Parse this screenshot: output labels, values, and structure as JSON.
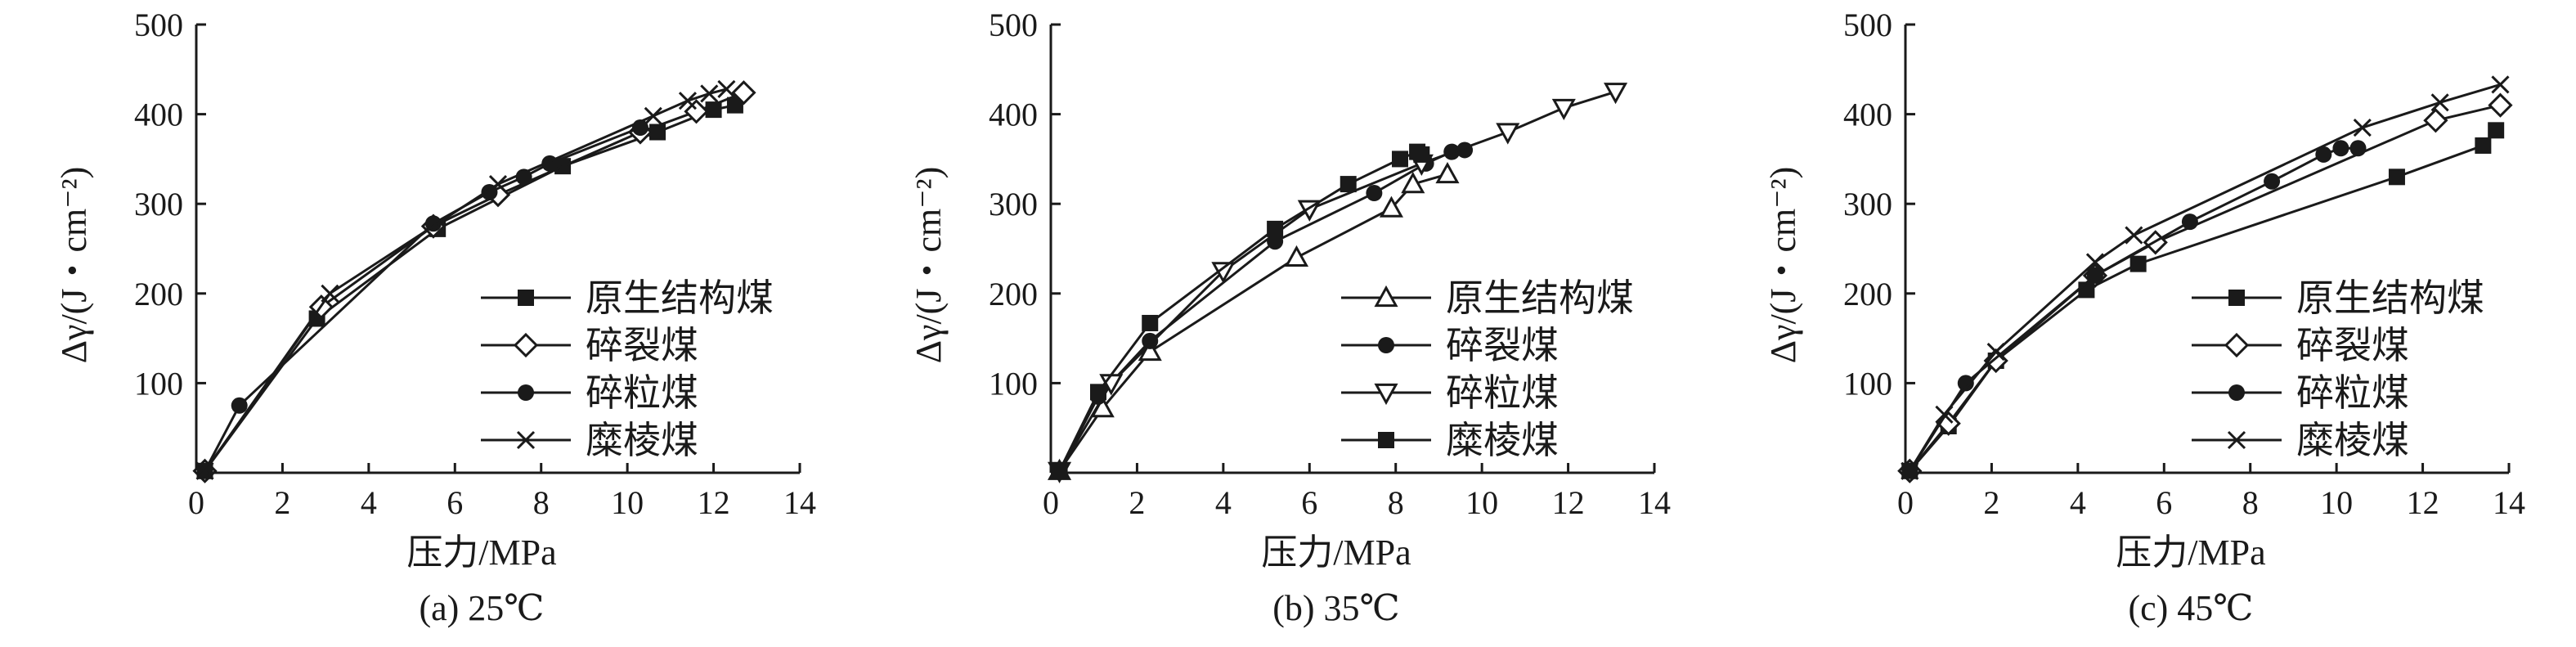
{
  "chart_data": [
    {
      "type": "line",
      "caption": "(a) 25℃",
      "xlabel": "压力/MPa",
      "ylabel": "Δγ/(J・cm⁻²)",
      "xlim": [
        0,
        14
      ],
      "ylim": [
        0,
        500
      ],
      "xticks": [
        0,
        2,
        4,
        6,
        8,
        10,
        12,
        14
      ],
      "yticks": [
        100,
        200,
        300,
        400,
        500
      ],
      "grid": false,
      "legend_position": "bottom-right",
      "series": [
        {
          "name": "原生结构煤",
          "marker": "square-filled",
          "x": [
            0.2,
            2.8,
            5.6,
            8.5,
            10.7,
            12.0,
            12.5
          ],
          "y": [
            2,
            172,
            272,
            342,
            380,
            405,
            410
          ]
        },
        {
          "name": "碎裂煤",
          "marker": "diamond-open",
          "x": [
            0.2,
            2.9,
            5.5,
            7.0,
            10.3,
            11.6,
            12.7
          ],
          "y": [
            2,
            185,
            275,
            310,
            380,
            403,
            424
          ]
        },
        {
          "name": "碎粒煤",
          "marker": "circle-filled",
          "x": [
            0.2,
            1.0,
            5.5,
            6.8,
            7.6,
            8.2,
            10.3
          ],
          "y": [
            2,
            75,
            278,
            313,
            330,
            345,
            385
          ]
        },
        {
          "name": "糜棱煤",
          "marker": "x",
          "x": [
            0.2,
            3.1,
            7.0,
            10.6,
            11.4,
            11.9,
            12.3
          ],
          "y": [
            2,
            200,
            322,
            398,
            415,
            423,
            428
          ]
        }
      ]
    },
    {
      "type": "line",
      "caption": "(b) 35℃",
      "xlabel": "压力/MPa",
      "ylabel": "Δγ/(J・cm⁻²)",
      "xlim": [
        0,
        14
      ],
      "ylim": [
        0,
        500
      ],
      "xticks": [
        0,
        2,
        4,
        6,
        8,
        10,
        12,
        14
      ],
      "yticks": [
        100,
        200,
        300,
        400,
        500
      ],
      "grid": false,
      "legend_position": "bottom-right",
      "series": [
        {
          "name": "原生结构煤",
          "marker": "triangle-up-open",
          "x": [
            0.2,
            1.2,
            2.3,
            5.7,
            7.9,
            8.4,
            9.2
          ],
          "y": [
            2,
            72,
            135,
            240,
            295,
            322,
            333
          ]
        },
        {
          "name": "碎裂煤",
          "marker": "circle-filled",
          "x": [
            0.2,
            1.1,
            2.3,
            5.2,
            7.5,
            8.7,
            9.3,
            9.6
          ],
          "y": [
            2,
            85,
            147,
            258,
            312,
            345,
            358,
            360
          ]
        },
        {
          "name": "碎粒煤",
          "marker": "triangle-down-open",
          "x": [
            0.2,
            1.4,
            4.0,
            6.0,
            8.6,
            10.6,
            11.9,
            13.1
          ],
          "y": [
            2,
            100,
            225,
            294,
            345,
            380,
            407,
            425
          ]
        },
        {
          "name": "糜棱煤",
          "marker": "square-filled",
          "x": [
            0.2,
            1.1,
            2.3,
            5.2,
            6.9,
            8.1,
            8.5,
            8.6
          ],
          "y": [
            2,
            90,
            167,
            272,
            322,
            350,
            358,
            355
          ]
        }
      ]
    },
    {
      "type": "line",
      "caption": "(c) 45℃",
      "xlabel": "压力/MPa",
      "ylabel": "Δγ/(J・cm⁻²)",
      "xlim": [
        0,
        14
      ],
      "ylim": [
        0,
        500
      ],
      "xticks": [
        0,
        2,
        4,
        6,
        8,
        10,
        12,
        14
      ],
      "yticks": [
        100,
        200,
        300,
        400,
        500
      ],
      "grid": false,
      "legend_position": "bottom-right",
      "series": [
        {
          "name": "原生结构煤",
          "marker": "square-filled",
          "x": [
            0.1,
            1.0,
            2.1,
            4.2,
            5.4,
            11.4,
            13.4,
            13.7
          ],
          "y": [
            2,
            52,
            125,
            204,
            233,
            330,
            365,
            382
          ]
        },
        {
          "name": "碎裂煤",
          "marker": "diamond-open",
          "x": [
            0.1,
            1.0,
            2.1,
            4.4,
            5.8,
            12.3,
            13.8
          ],
          "y": [
            2,
            55,
            125,
            220,
            257,
            393,
            410
          ]
        },
        {
          "name": "碎粒煤",
          "marker": "circle-filled",
          "x": [
            0.1,
            1.4,
            4.4,
            6.6,
            8.5,
            9.7,
            10.1,
            10.5
          ],
          "y": [
            2,
            100,
            220,
            280,
            325,
            355,
            362,
            362
          ]
        },
        {
          "name": "糜棱煤",
          "marker": "x",
          "x": [
            0.1,
            0.9,
            2.1,
            4.4,
            5.3,
            10.6,
            12.4,
            13.8
          ],
          "y": [
            2,
            65,
            135,
            235,
            265,
            385,
            413,
            433
          ]
        }
      ]
    }
  ]
}
